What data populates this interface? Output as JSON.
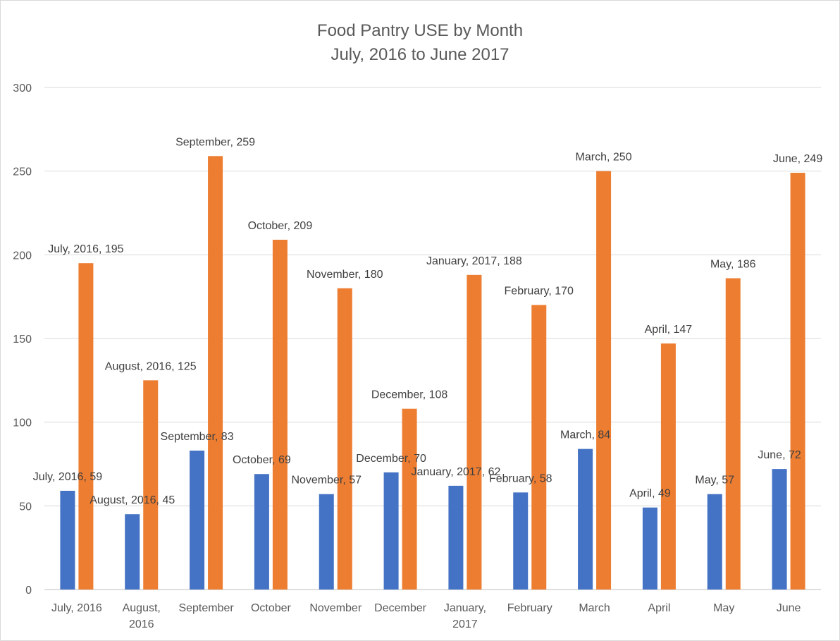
{
  "chart_data": {
    "type": "bar",
    "title_lines": [
      "Food Pantry USE by Month",
      "July, 2016 to June 2017"
    ],
    "xlabel": "",
    "ylabel": "",
    "ylim": [
      0,
      300
    ],
    "yticks": [
      0,
      50,
      100,
      150,
      200,
      250,
      300
    ],
    "grid": true,
    "categories": [
      [
        "July, 2016"
      ],
      [
        "August,",
        "2016"
      ],
      [
        "September"
      ],
      [
        "October"
      ],
      [
        "November"
      ],
      [
        "December"
      ],
      [
        "January,",
        "2017"
      ],
      [
        "February"
      ],
      [
        "March"
      ],
      [
        "April"
      ],
      [
        "May"
      ],
      [
        "June"
      ]
    ],
    "series": [
      {
        "name": "Series 1",
        "color": "#4472C4",
        "values": [
          59,
          45,
          83,
          69,
          57,
          70,
          62,
          58,
          84,
          49,
          57,
          72
        ],
        "labels": [
          "July, 2016, 59",
          "August, 2016, 45",
          "September, 83",
          "October, 69",
          "November, 57",
          "December, 70",
          "January, 2017, 62",
          "February, 58",
          "March, 84",
          "April, 49",
          "May, 57",
          "June, 72"
        ]
      },
      {
        "name": "Series 2",
        "color": "#ED7D31",
        "values": [
          195,
          125,
          259,
          209,
          180,
          108,
          188,
          170,
          250,
          147,
          186,
          249
        ],
        "labels": [
          "July, 2016, 195",
          "August, 2016, 125",
          "September, 259",
          "October, 209",
          "November, 180",
          "December, 108",
          "January, 2017, 188",
          "February, 170",
          "March, 250",
          "April, 147",
          "May, 186",
          "June, 249"
        ]
      }
    ]
  }
}
